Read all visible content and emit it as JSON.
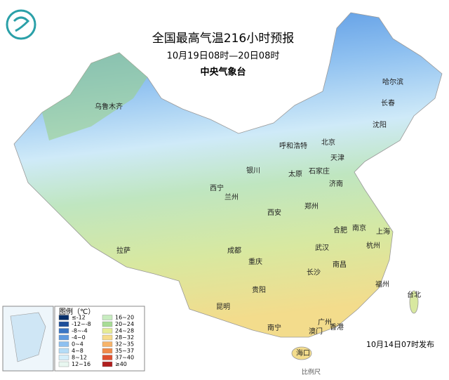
{
  "header": {
    "title": "全国最高气温216小时预报",
    "subtitle": "10月19日08时—20日08时",
    "source": "中央气象台"
  },
  "cities": [
    "乌鲁木齐",
    "哈尔滨",
    "长春",
    "沈阳",
    "呼和浩特",
    "北京",
    "天津",
    "石家庄",
    "银川",
    "太原",
    "济南",
    "西宁",
    "兰州",
    "郑州",
    "西安",
    "合肥",
    "南京",
    "上海",
    "拉萨",
    "成都",
    "武汉",
    "杭州",
    "重庆",
    "长沙",
    "南昌",
    "贵阳",
    "福州",
    "台北",
    "昆明",
    "广州",
    "南宁",
    "澳门",
    "香港",
    "海口"
  ],
  "legend": {
    "title": "图例（℃）",
    "items": [
      {
        "label": "≤-12",
        "color": "#08306b"
      },
      {
        "label": "-12~-8",
        "color": "#1d4f9a"
      },
      {
        "label": "-8~-4",
        "color": "#3a76c4"
      },
      {
        "label": "-4~0",
        "color": "#5f9be0"
      },
      {
        "label": "0~4",
        "color": "#8ec0f0"
      },
      {
        "label": "4~8",
        "color": "#b5dcf7"
      },
      {
        "label": "8~12",
        "color": "#d4eefa"
      },
      {
        "label": "12~16",
        "color": "#e8f7f0"
      },
      {
        "label": "16~20",
        "color": "#c8ecc0"
      },
      {
        "label": "20~24",
        "color": "#a8dc96"
      },
      {
        "label": "24~28",
        "color": "#e6ec96"
      },
      {
        "label": "28~32",
        "color": "#f7dc8c"
      },
      {
        "label": "32~35",
        "color": "#f7b46a"
      },
      {
        "label": "35~37",
        "color": "#f08a4a"
      },
      {
        "label": "37~40",
        "color": "#e0502e"
      },
      {
        "label": "≥40",
        "color": "#b01e1e"
      }
    ]
  },
  "footer": {
    "release": "10月14日07时发布",
    "scale": "比例尺"
  }
}
